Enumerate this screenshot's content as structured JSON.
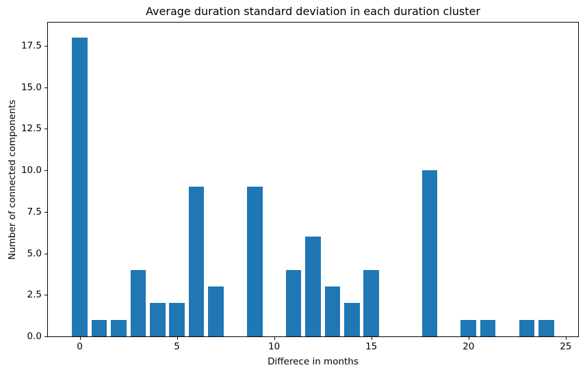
{
  "chart_data": {
    "type": "bar",
    "title": "Average duration standard deviation in each duration cluster",
    "xlabel": "Differece in months",
    "ylabel": "Number of connected components",
    "categories": [
      0,
      1,
      2,
      3,
      4,
      5,
      6,
      7,
      8,
      9,
      10,
      11,
      12,
      13,
      14,
      15,
      16,
      17,
      18,
      19,
      20,
      21,
      22,
      23,
      24
    ],
    "values": [
      18,
      1,
      1,
      4,
      2,
      2,
      9,
      3,
      0,
      9,
      0,
      4,
      6,
      3,
      2,
      4,
      0,
      0,
      10,
      0,
      1,
      1,
      0,
      1,
      1
    ],
    "bar_color": "#1f77b4",
    "bar_width": 0.8,
    "xlim": [
      -1.64,
      25.64
    ],
    "ylim": [
      0,
      18.9
    ],
    "xticks": [
      0,
      5,
      10,
      15,
      20,
      25
    ],
    "xtick_labels": [
      "0",
      "5",
      "10",
      "15",
      "20",
      "25"
    ],
    "yticks": [
      0,
      2.5,
      5,
      7.5,
      10,
      12.5,
      15,
      17.5
    ],
    "ytick_labels": [
      "0.0",
      "2.5",
      "5.0",
      "7.5",
      "10.0",
      "12.5",
      "15.0",
      "17.5"
    ],
    "grid": false,
    "legend": null,
    "background_color": "#ffffff",
    "spine_color": "#000000"
  }
}
